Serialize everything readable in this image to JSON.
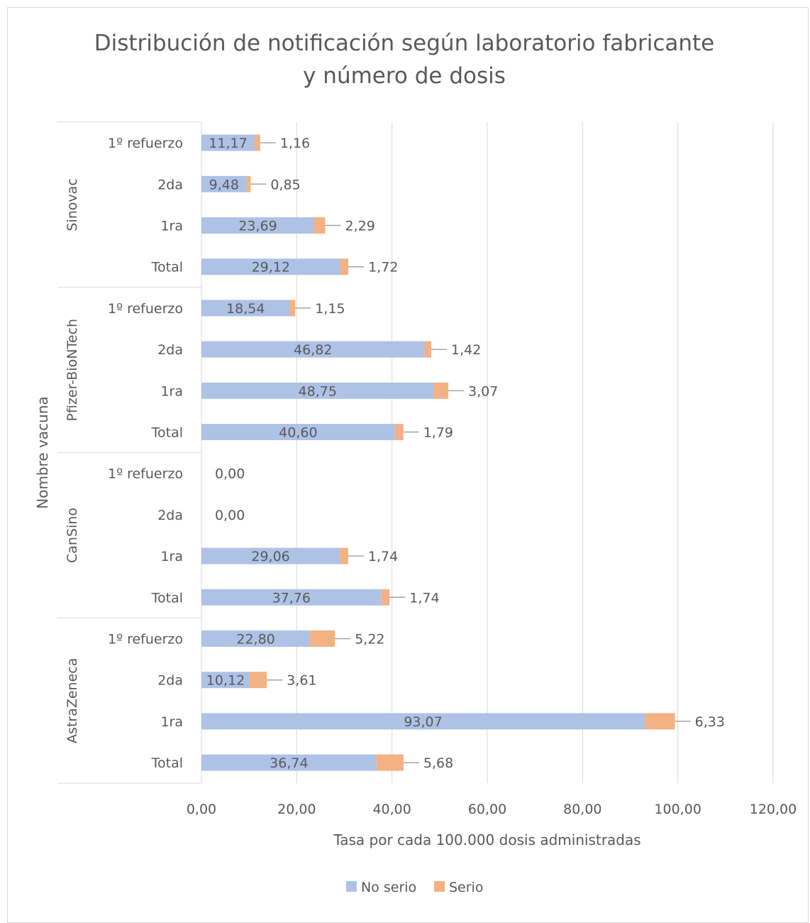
{
  "chart_data": {
    "type": "bar",
    "orientation": "horizontal",
    "stacked": true,
    "title": "Distribución de notificación según laboratorio fabricante y número de dosis",
    "xlabel": "Tasa por cada 100.000 dosis administradas",
    "ylabel": "Nombre vacuna",
    "xlim": [
      0,
      120
    ],
    "x_ticks": [
      "0,00",
      "20,00",
      "40,00",
      "60,00",
      "80,00",
      "100,00",
      "120,00"
    ],
    "grid": "vertical",
    "legend_position": "bottom",
    "groups": [
      {
        "name": "Sinovac",
        "categories": [
          "1º refuerzo",
          "2da",
          "1ra",
          "Total"
        ]
      },
      {
        "name": "Pfizer-BioNTech",
        "categories": [
          "1º refuerzo",
          "2da",
          "1ra",
          "Total"
        ]
      },
      {
        "name": "CanSino",
        "categories": [
          "1º refuerzo",
          "2da",
          "1ra",
          "Total"
        ]
      },
      {
        "name": "AstraZeneca",
        "categories": [
          "1º refuerzo",
          "2da",
          "1ra",
          "Total"
        ]
      }
    ],
    "series": [
      {
        "name": "No serio",
        "color": "#aec2e6",
        "values": [
          11.17,
          9.48,
          23.69,
          29.12,
          18.54,
          46.82,
          48.75,
          40.6,
          0,
          0,
          29.06,
          37.76,
          22.8,
          10.12,
          93.07,
          36.74
        ],
        "labels": [
          "11,17",
          "9,48",
          "23,69",
          "29,12",
          "18,54",
          "46,82",
          "48,75",
          "40,60",
          "",
          "",
          "29,06",
          "37,76",
          "22,80",
          "10,12",
          "93,07",
          "36,74"
        ]
      },
      {
        "name": "Serio",
        "color": "#f4b183",
        "values": [
          1.16,
          0.85,
          2.29,
          1.72,
          1.15,
          1.42,
          3.07,
          1.79,
          0,
          0,
          1.74,
          1.74,
          5.22,
          3.61,
          6.33,
          5.68
        ],
        "labels": [
          "1,16",
          "0,85",
          "2,29",
          "1,72",
          "1,15",
          "1,42",
          "3,07",
          "1,79",
          "0,00",
          "0,00",
          "1,74",
          "1,74",
          "5,22",
          "3,61",
          "6,33",
          "5,68"
        ]
      }
    ]
  }
}
